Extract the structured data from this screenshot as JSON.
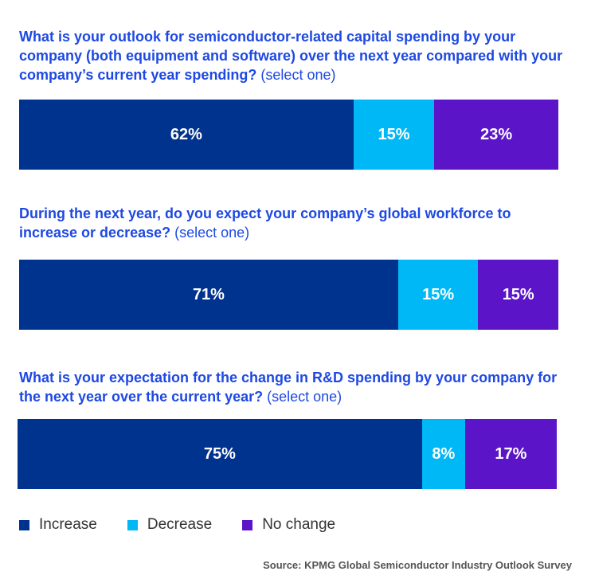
{
  "colors": {
    "increase": "#00338d",
    "decrease": "#00b8f5",
    "no_change": "#5b14c8",
    "question": "#1e49e2"
  },
  "chart_data": {
    "type": "bar",
    "orientation": "horizontal-stacked-100",
    "legend_position": "bottom-left",
    "legend": [
      "Increase",
      "Decrease",
      "No change"
    ],
    "questions": [
      {
        "title": "What is your outlook for semiconductor-related capital spending by your company (both equipment and software) over the next year compared with your company’s current year spending?",
        "note": " (select one)",
        "values": [
          62,
          15,
          23
        ],
        "labels": [
          "62%",
          "15%",
          "23%"
        ]
      },
      {
        "title": "During the next year, do you expect your company’s global workforce to increase or decrease?",
        "note": " (select one)",
        "values": [
          71,
          15,
          15
        ],
        "labels": [
          "71%",
          "15%",
          "15%"
        ]
      },
      {
        "title": "What is your expectation for the change in R&D spending by your company for the next year over the current year?",
        "note": " (select one)",
        "values": [
          75,
          8,
          17
        ],
        "labels": [
          "75%",
          "8%",
          "17%"
        ]
      }
    ],
    "source": "Source: KPMG Global Semiconductor Industry Outlook Survey"
  }
}
